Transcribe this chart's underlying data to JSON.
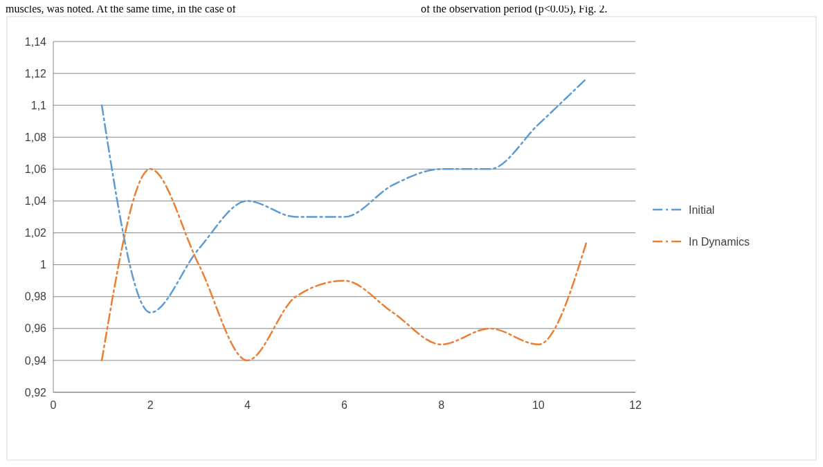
{
  "chart_data": {
    "type": "line",
    "annotations": [
      "muscles, was noted. At the same time, in the case of",
      "of the observation period (p<0.05), Fig. 2."
    ],
    "x": [
      1,
      2,
      3,
      4,
      5,
      6,
      7,
      8,
      9,
      10,
      11
    ],
    "series": [
      {
        "name": "Initial",
        "color": "#5b9bd5",
        "values": [
          1.1,
          0.97,
          1.01,
          1.04,
          1.03,
          1.03,
          1.05,
          1.06,
          1.06,
          1.088,
          1.117
        ]
      },
      {
        "name": "In Dynamics",
        "color": "#ed7d31",
        "values": [
          0.94,
          1.06,
          1.0,
          0.94,
          0.98,
          0.99,
          0.97,
          0.95,
          0.96,
          0.95,
          1.015
        ]
      }
    ],
    "xlim": [
      0,
      12
    ],
    "xticks": [
      0,
      2,
      4,
      6,
      8,
      10,
      12
    ],
    "ylim": [
      0.92,
      1.14
    ],
    "yticks": [
      {
        "value": 0.92,
        "label": "0,92"
      },
      {
        "value": 0.94,
        "label": "0,94"
      },
      {
        "value": 0.96,
        "label": "0,96"
      },
      {
        "value": 0.98,
        "label": "0,98"
      },
      {
        "value": 1,
        "label": "1"
      },
      {
        "value": 1.02,
        "label": "1,02"
      },
      {
        "value": 1.04,
        "label": "1,04"
      },
      {
        "value": 1.06,
        "label": "1,06"
      },
      {
        "value": 1.08,
        "label": "1,08"
      },
      {
        "value": 1.1,
        "label": "1,1"
      },
      {
        "value": 1.12,
        "label": "1,12"
      },
      {
        "value": 1.14,
        "label": "1,14"
      }
    ],
    "grid": "y",
    "legend": "right",
    "line_style": "dashed",
    "marker": "none"
  }
}
